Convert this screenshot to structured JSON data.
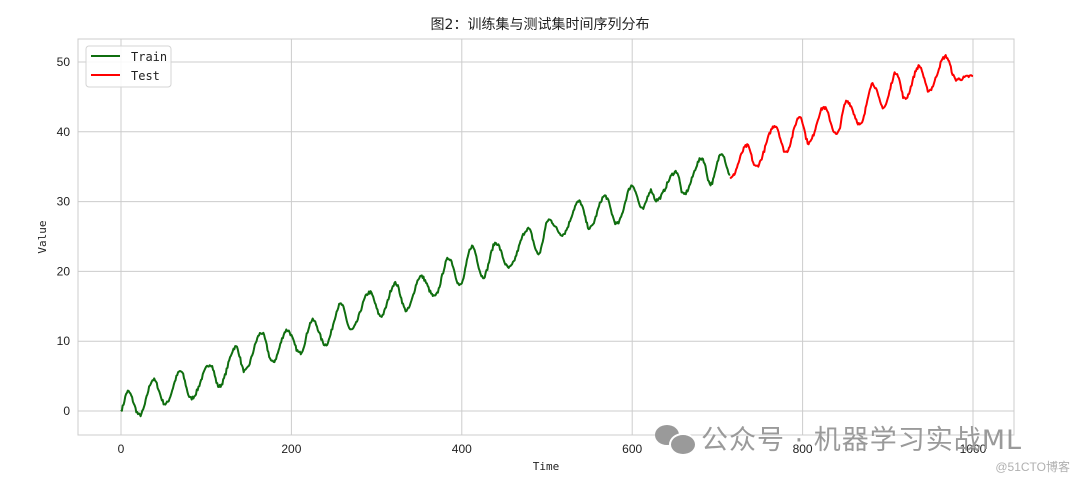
{
  "chart_data": {
    "type": "line",
    "title": "图2：训练集与测试集时间序列分布",
    "xlabel": "Time",
    "ylabel": "Value",
    "xlim": [
      -50,
      1050
    ],
    "ylim": [
      -3.5,
      53.5
    ],
    "xticks": [
      0,
      200,
      400,
      600,
      800,
      1000
    ],
    "yticks": [
      0,
      10,
      20,
      30,
      40,
      50
    ],
    "grid": true,
    "legend_position": "upper left",
    "legend": [
      "Train",
      "Test"
    ],
    "generator": {
      "n_points": 1000,
      "trend_slope": 0.048,
      "seasonal_amplitude": 2.2,
      "seasonal_period": 30,
      "noise_std": 0.2,
      "train_split_index": 715
    },
    "series": [
      {
        "name": "Train",
        "color": "#0f6e0f",
        "x_range": [
          0,
          715
        ],
        "sample_points": [
          [
            0,
            0.2
          ],
          [
            8,
            2.8
          ],
          [
            22,
            -0.6
          ],
          [
            38,
            4.5
          ],
          [
            52,
            1.0
          ],
          [
            70,
            5.7
          ],
          [
            82,
            1.8
          ],
          [
            105,
            6.7
          ],
          [
            115,
            3.5
          ],
          [
            135,
            9.2
          ],
          [
            145,
            5.7
          ],
          [
            165,
            11.2
          ],
          [
            178,
            7.0
          ],
          [
            195,
            11.6
          ],
          [
            210,
            8.3
          ],
          [
            225,
            13.0
          ],
          [
            240,
            9.5
          ],
          [
            258,
            15.3
          ],
          [
            270,
            11.6
          ],
          [
            292,
            17.0
          ],
          [
            305,
            13.6
          ],
          [
            322,
            18.3
          ],
          [
            335,
            14.4
          ],
          [
            352,
            19.3
          ],
          [
            368,
            16.4
          ],
          [
            385,
            21.9
          ],
          [
            398,
            18.0
          ],
          [
            412,
            23.6
          ],
          [
            425,
            19.2
          ],
          [
            440,
            24.1
          ],
          [
            455,
            20.5
          ],
          [
            478,
            26.1
          ],
          [
            490,
            22.5
          ],
          [
            502,
            27.4
          ],
          [
            518,
            25.3
          ],
          [
            538,
            30.0
          ],
          [
            550,
            26.2
          ],
          [
            568,
            30.8
          ],
          [
            582,
            26.8
          ],
          [
            600,
            32.3
          ],
          [
            612,
            28.9
          ],
          [
            622,
            31.6
          ],
          [
            628,
            30.2
          ],
          [
            652,
            34.3
          ],
          [
            660,
            31.0
          ],
          [
            682,
            36.2
          ],
          [
            692,
            32.5
          ],
          [
            705,
            37.0
          ],
          [
            715,
            33.9
          ]
        ]
      },
      {
        "name": "Test",
        "color": "#ff0000",
        "x_range": [
          715,
          1000
        ],
        "sample_points": [
          [
            715,
            33.3
          ],
          [
            735,
            38.0
          ],
          [
            745,
            35.0
          ],
          [
            768,
            40.9
          ],
          [
            780,
            37.1
          ],
          [
            797,
            42.2
          ],
          [
            807,
            38.4
          ],
          [
            825,
            43.5
          ],
          [
            840,
            39.6
          ],
          [
            852,
            44.4
          ],
          [
            868,
            41.0
          ],
          [
            882,
            46.9
          ],
          [
            895,
            43.5
          ],
          [
            910,
            48.5
          ],
          [
            920,
            44.7
          ],
          [
            937,
            49.4
          ],
          [
            948,
            45.9
          ],
          [
            968,
            50.8
          ],
          [
            980,
            47.5
          ],
          [
            1000,
            48.0
          ]
        ]
      }
    ]
  },
  "legend": {
    "train_label": "Train",
    "test_label": "Test"
  },
  "watermark": {
    "text": "公众号 · 机器学习实战ML",
    "credit": "@51CTO博客"
  }
}
